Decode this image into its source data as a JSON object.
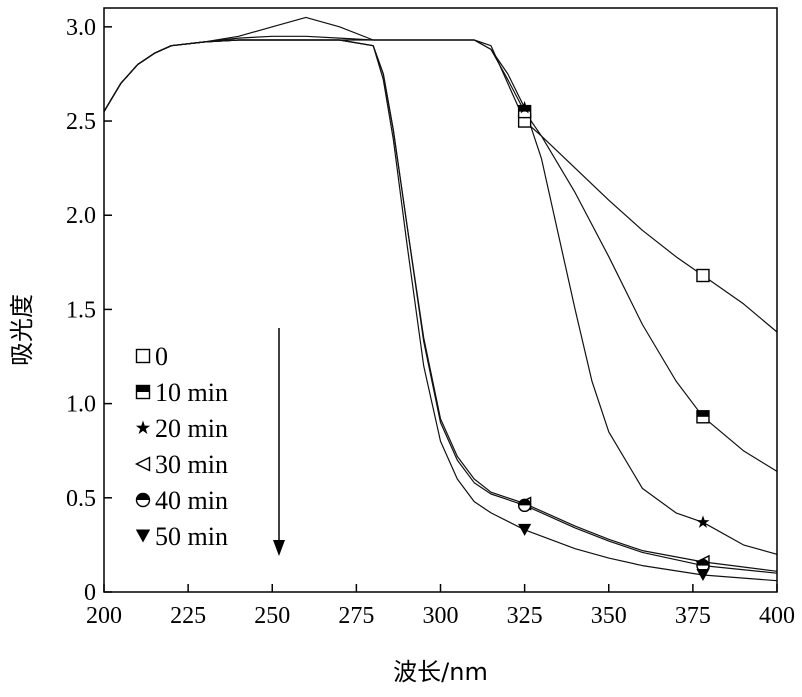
{
  "chart_data": {
    "type": "line",
    "xlabel": "波长/nm",
    "ylabel": "吸光度",
    "xlim": [
      200,
      400
    ],
    "ylim": [
      0,
      3.1
    ],
    "x_ticks": [
      "200",
      "225",
      "250",
      "275",
      "300",
      "325",
      "350",
      "375",
      "400"
    ],
    "y_ticks": [
      "0",
      "0.5",
      "1.0",
      "1.5",
      "2.0",
      "2.5",
      "3.0"
    ],
    "grid": false,
    "legend_position": "left-bottom",
    "arrow": "down",
    "series": [
      {
        "name": "0",
        "marker": "square-open",
        "x": [
          200,
          205,
          210,
          215,
          220,
          230,
          240,
          250,
          260,
          270,
          280,
          290,
          300,
          310,
          315,
          320,
          325,
          330,
          340,
          350,
          360,
          370,
          378,
          390,
          400
        ],
        "y": [
          2.55,
          2.7,
          2.8,
          2.86,
          2.9,
          2.92,
          2.95,
          3.0,
          3.05,
          3.0,
          2.93,
          2.93,
          2.93,
          2.93,
          2.9,
          2.7,
          2.5,
          2.42,
          2.25,
          2.08,
          1.92,
          1.78,
          1.68,
          1.53,
          1.38
        ],
        "marker_x": [
          325,
          378
        ],
        "marker_y": [
          2.5,
          1.68
        ]
      },
      {
        "name": "10 min",
        "marker": "square-half",
        "x": [
          200,
          205,
          210,
          215,
          220,
          230,
          240,
          250,
          260,
          270,
          280,
          290,
          300,
          310,
          315,
          320,
          325,
          330,
          340,
          350,
          360,
          370,
          378,
          390,
          400
        ],
        "y": [
          2.55,
          2.7,
          2.8,
          2.86,
          2.9,
          2.92,
          2.94,
          2.95,
          2.95,
          2.94,
          2.93,
          2.93,
          2.93,
          2.93,
          2.88,
          2.72,
          2.55,
          2.42,
          2.12,
          1.78,
          1.42,
          1.12,
          0.93,
          0.75,
          0.64
        ],
        "marker_x": [
          325,
          378
        ],
        "marker_y": [
          2.55,
          0.93
        ]
      },
      {
        "name": "20 min",
        "marker": "star",
        "x": [
          200,
          205,
          210,
          215,
          220,
          230,
          240,
          250,
          260,
          270,
          280,
          290,
          300,
          310,
          315,
          320,
          325,
          330,
          335,
          340,
          345,
          350,
          360,
          370,
          378,
          390,
          400
        ],
        "y": [
          2.55,
          2.7,
          2.8,
          2.86,
          2.9,
          2.92,
          2.93,
          2.93,
          2.93,
          2.93,
          2.93,
          2.93,
          2.93,
          2.93,
          2.88,
          2.75,
          2.57,
          2.3,
          1.9,
          1.5,
          1.12,
          0.85,
          0.55,
          0.42,
          0.37,
          0.25,
          0.2
        ],
        "marker_x": [
          325,
          378
        ],
        "marker_y": [
          2.57,
          0.37
        ]
      },
      {
        "name": "30 min",
        "marker": "triangle-left-open",
        "x": [
          200,
          205,
          210,
          215,
          220,
          230,
          240,
          250,
          260,
          270,
          280,
          283,
          286,
          290,
          295,
          300,
          305,
          310,
          315,
          325,
          340,
          350,
          360,
          378,
          400
        ],
        "y": [
          2.55,
          2.7,
          2.8,
          2.86,
          2.9,
          2.92,
          2.93,
          2.93,
          2.93,
          2.93,
          2.9,
          2.75,
          2.45,
          1.95,
          1.35,
          0.92,
          0.72,
          0.6,
          0.53,
          0.47,
          0.35,
          0.28,
          0.22,
          0.16,
          0.11
        ],
        "marker_x": [
          325,
          378
        ],
        "marker_y": [
          0.47,
          0.16
        ]
      },
      {
        "name": "40 min",
        "marker": "circle-half",
        "x": [
          200,
          205,
          210,
          215,
          220,
          230,
          240,
          250,
          260,
          270,
          280,
          283,
          286,
          290,
          295,
          300,
          305,
          310,
          315,
          325,
          340,
          350,
          360,
          378,
          400
        ],
        "y": [
          2.55,
          2.7,
          2.8,
          2.86,
          2.9,
          2.92,
          2.93,
          2.93,
          2.93,
          2.93,
          2.9,
          2.75,
          2.45,
          1.95,
          1.33,
          0.9,
          0.7,
          0.58,
          0.52,
          0.46,
          0.34,
          0.27,
          0.21,
          0.14,
          0.1
        ],
        "marker_x": [
          325,
          378
        ],
        "marker_y": [
          0.46,
          0.14
        ]
      },
      {
        "name": "50 min",
        "marker": "triangle-down-filled",
        "x": [
          200,
          205,
          210,
          215,
          220,
          230,
          240,
          250,
          260,
          270,
          280,
          283,
          286,
          290,
          295,
          300,
          305,
          310,
          315,
          325,
          340,
          350,
          360,
          378,
          400
        ],
        "y": [
          2.55,
          2.7,
          2.8,
          2.86,
          2.9,
          2.92,
          2.93,
          2.93,
          2.93,
          2.93,
          2.9,
          2.72,
          2.4,
          1.85,
          1.2,
          0.8,
          0.6,
          0.48,
          0.42,
          0.33,
          0.23,
          0.18,
          0.14,
          0.09,
          0.06
        ],
        "marker_x": [
          325,
          378
        ],
        "marker_y": [
          0.33,
          0.09
        ]
      }
    ]
  }
}
